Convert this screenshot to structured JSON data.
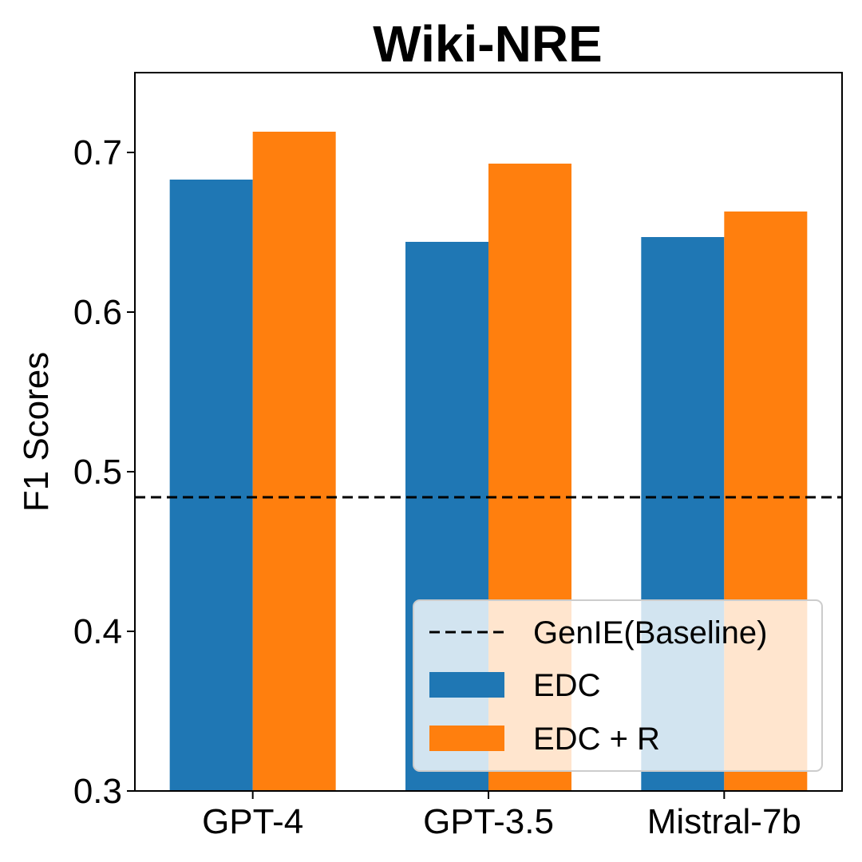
{
  "chart_data": {
    "type": "bar",
    "title": "Wiki-NRE",
    "xlabel": "",
    "ylabel": "F1 Scores",
    "categories": [
      "GPT-4",
      "GPT-3.5",
      "Mistral-7b"
    ],
    "series": [
      {
        "name": "EDC",
        "values": [
          0.683,
          0.644,
          0.647
        ],
        "color": "#1f77b4"
      },
      {
        "name": "EDC + R",
        "values": [
          0.713,
          0.693,
          0.663
        ],
        "color": "#ff7f0e"
      }
    ],
    "baseline": {
      "name": "GenIE(Baseline)",
      "value": 0.484,
      "style": "dashed",
      "color": "#000000"
    },
    "ylim": [
      0.3,
      0.75
    ],
    "yticks": [
      "0.3",
      "0.4",
      "0.5",
      "0.6",
      "0.7"
    ],
    "grid": false,
    "legend_position": "bottom-right"
  }
}
